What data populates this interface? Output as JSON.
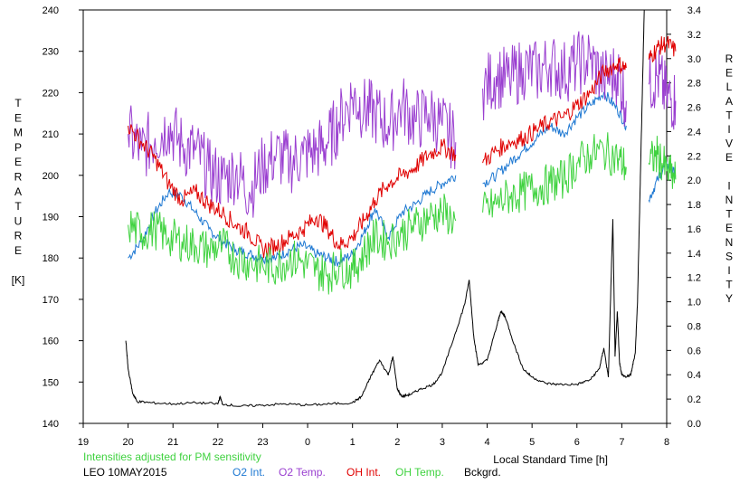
{
  "chart_data": {
    "type": "line",
    "xlabel": "Local Standard Time [h]",
    "ylabel_left": [
      "T",
      "E",
      "M",
      "P",
      "E",
      "R",
      "A",
      "T",
      "U",
      "R",
      "E",
      "",
      "[K]"
    ],
    "ylabel_right": [
      "R",
      "E",
      "L",
      "A",
      "T",
      "I",
      "V",
      "E",
      "",
      "I",
      "N",
      "T",
      "E",
      "N",
      "S",
      "I",
      "T",
      "Y"
    ],
    "xlim": [
      19,
      8
    ],
    "x_ticks": [
      19,
      20,
      21,
      22,
      23,
      0,
      1,
      2,
      3,
      4,
      5,
      6,
      7,
      8
    ],
    "x_tick_labels": [
      "19",
      "20",
      "21",
      "22",
      "23",
      "0",
      "1",
      "2",
      "3",
      "4",
      "5",
      "6",
      "7",
      "8"
    ],
    "y_left_lim": [
      140,
      240
    ],
    "y_left_ticks": [
      140,
      150,
      160,
      170,
      180,
      190,
      200,
      210,
      220,
      230,
      240
    ],
    "y_left_tick_labels": [
      "140",
      "150",
      "160",
      "170",
      "180",
      "190",
      "200",
      "210",
      "220",
      "230",
      "240"
    ],
    "y_right_lim": [
      0.0,
      3.4
    ],
    "y_right_ticks": [
      0.0,
      0.2,
      0.4,
      0.6,
      0.8,
      1.0,
      1.2,
      1.4,
      1.6,
      1.8,
      2.0,
      2.2,
      2.4,
      2.6,
      2.8,
      3.0,
      3.2,
      3.4
    ],
    "y_right_tick_labels": [
      "0.0",
      "0.2",
      "0.4",
      "0.6",
      "0.8",
      "1.0",
      "1.2",
      "1.4",
      "1.6",
      "1.8",
      "2.0",
      "2.2",
      "2.4",
      "2.6",
      "2.8",
      "3.0",
      "3.2",
      "3.4"
    ],
    "grid": false,
    "note": "Intensities adjusted for PM sensitivity",
    "station": "LEO 10MAY2015",
    "series": [
      {
        "name": "O2 Int.",
        "color": "#1e78d2",
        "axis": "left",
        "x": [
          20.0,
          20.3,
          20.6,
          20.9,
          21.2,
          21.5,
          21.8,
          22.1,
          22.4,
          22.7,
          23.0,
          23.3,
          23.6,
          23.9,
          24.2,
          24.45,
          24.7,
          25.0,
          25.25,
          25.5,
          25.8,
          26.1,
          26.4,
          26.7,
          27.0,
          27.3,
          27.6,
          27.9,
          28.2,
          28.5,
          28.8,
          29.1,
          29.4,
          29.7,
          30.0,
          30.3,
          30.6,
          30.9,
          31.1,
          31.3,
          31.6,
          31.8,
          32.0,
          32.2
        ],
        "y": [
          180,
          184,
          191,
          196,
          195,
          191,
          187,
          184,
          182,
          181,
          180,
          180,
          182,
          183,
          181,
          180,
          179,
          181,
          186,
          192,
          185,
          191,
          193,
          196,
          198,
          200,
          null,
          198,
          200,
          203,
          206,
          209,
          212,
          210,
          214,
          217,
          220,
          216,
          212,
          null,
          194,
          199,
          203,
          200
        ]
      },
      {
        "name": "O2 Temp.",
        "color": "#9a3fd0",
        "axis": "left",
        "x": [
          20.0,
          20.3,
          20.6,
          20.9,
          21.2,
          21.5,
          21.8,
          22.1,
          22.4,
          22.7,
          23.0,
          23.3,
          23.6,
          23.9,
          24.2,
          24.45,
          24.7,
          25.0,
          25.25,
          25.5,
          25.8,
          26.1,
          26.4,
          26.7,
          27.0,
          27.3,
          27.6,
          27.9,
          28.2,
          28.5,
          28.8,
          29.1,
          29.4,
          29.7,
          30.0,
          30.3,
          30.6,
          30.9,
          31.1,
          31.3,
          31.6,
          31.8,
          32.0,
          32.2
        ],
        "y": [
          210,
          206,
          209,
          212,
          207,
          206,
          201,
          199,
          201,
          196,
          202,
          205,
          203,
          205,
          206,
          208,
          213,
          219,
          216,
          215,
          212,
          217,
          213,
          215,
          212,
          208,
          null,
          221,
          224,
          223,
          226,
          225,
          227,
          225,
          227,
          228,
          223,
          225,
          218,
          null,
          222,
          224,
          219,
          218
        ]
      },
      {
        "name": "OH Int.",
        "color": "#e00000",
        "axis": "left",
        "x": [
          20.0,
          20.3,
          20.6,
          20.9,
          21.2,
          21.5,
          21.8,
          22.1,
          22.4,
          22.7,
          23.0,
          23.3,
          23.6,
          23.9,
          24.2,
          24.45,
          24.7,
          25.0,
          25.25,
          25.5,
          25.8,
          26.1,
          26.4,
          26.7,
          27.0,
          27.3,
          27.6,
          27.9,
          28.2,
          28.5,
          28.8,
          29.1,
          29.4,
          29.7,
          30.0,
          30.3,
          30.6,
          30.9,
          31.1,
          31.3,
          31.6,
          31.8,
          32.0,
          32.2
        ],
        "y": [
          212,
          208,
          204,
          198,
          194,
          196,
          193,
          191,
          188,
          186,
          182,
          183,
          185,
          187,
          190,
          187,
          183,
          185,
          189,
          194,
          198,
          200,
          202,
          205,
          207,
          205,
          null,
          203,
          206,
          208,
          209,
          211,
          213,
          214,
          217,
          220,
          225,
          227,
          226,
          null,
          228,
          231,
          232,
          230
        ]
      },
      {
        "name": "OH Temp.",
        "color": "#3fd23f",
        "axis": "left",
        "x": [
          20.0,
          20.3,
          20.6,
          20.9,
          21.2,
          21.5,
          21.8,
          22.1,
          22.4,
          22.7,
          23.0,
          23.3,
          23.6,
          23.9,
          24.2,
          24.45,
          24.7,
          25.0,
          25.25,
          25.5,
          25.8,
          26.1,
          26.4,
          26.7,
          27.0,
          27.3,
          27.6,
          27.9,
          28.2,
          28.5,
          28.8,
          29.1,
          29.4,
          29.7,
          30.0,
          30.3,
          30.6,
          30.9,
          31.1,
          31.3,
          31.6,
          31.8,
          32.0,
          32.2
        ],
        "y": [
          188,
          186,
          187,
          185,
          184,
          183,
          182,
          183,
          180,
          179,
          178,
          178,
          180,
          179,
          177,
          176,
          178,
          177,
          181,
          185,
          184,
          186,
          188,
          190,
          191,
          189,
          null,
          191,
          193,
          195,
          196,
          197,
          198,
          199,
          203,
          205,
          206,
          204,
          202,
          null,
          203,
          205,
          201,
          199
        ]
      },
      {
        "name": "Bckgrd.",
        "color": "#000000",
        "axis": "right",
        "x": [
          19.95,
          20.0,
          20.1,
          20.2,
          20.5,
          21.0,
          21.5,
          22.0,
          22.05,
          22.1,
          22.5,
          23.0,
          23.5,
          24.0,
          24.5,
          25.0,
          25.2,
          25.4,
          25.6,
          25.8,
          25.9,
          26.0,
          26.1,
          26.3,
          26.5,
          26.8,
          27.0,
          27.3,
          27.5,
          27.6,
          27.7,
          27.8,
          28.0,
          28.2,
          28.3,
          28.4,
          28.6,
          28.8,
          29.0,
          29.3,
          29.6,
          30.0,
          30.3,
          30.5,
          30.6,
          30.7,
          30.8,
          30.85,
          30.9,
          30.95,
          31.0,
          31.1,
          31.2,
          31.3,
          31.35,
          31.4,
          31.45,
          31.5
        ],
        "y": [
          0.68,
          0.45,
          0.25,
          0.18,
          0.17,
          0.16,
          0.17,
          0.16,
          0.22,
          0.16,
          0.14,
          0.15,
          0.16,
          0.15,
          0.16,
          0.17,
          0.22,
          0.38,
          0.52,
          0.4,
          0.55,
          0.28,
          0.22,
          0.24,
          0.28,
          0.32,
          0.42,
          0.75,
          0.98,
          1.18,
          0.72,
          0.48,
          0.52,
          0.78,
          0.92,
          0.88,
          0.65,
          0.45,
          0.38,
          0.33,
          0.32,
          0.32,
          0.36,
          0.45,
          0.62,
          0.38,
          1.68,
          0.55,
          0.92,
          0.5,
          0.4,
          0.38,
          0.4,
          0.58,
          1.0,
          1.8,
          2.6,
          3.4
        ]
      }
    ],
    "legend": [
      {
        "label": "O2 Int.",
        "color": "#1e78d2"
      },
      {
        "label": "O2 Temp.",
        "color": "#9a3fd0"
      },
      {
        "label": "OH Int.",
        "color": "#e00000"
      },
      {
        "label": "OH Temp.",
        "color": "#3fd23f"
      },
      {
        "label": "Bckgrd.",
        "color": "#000000"
      }
    ]
  }
}
